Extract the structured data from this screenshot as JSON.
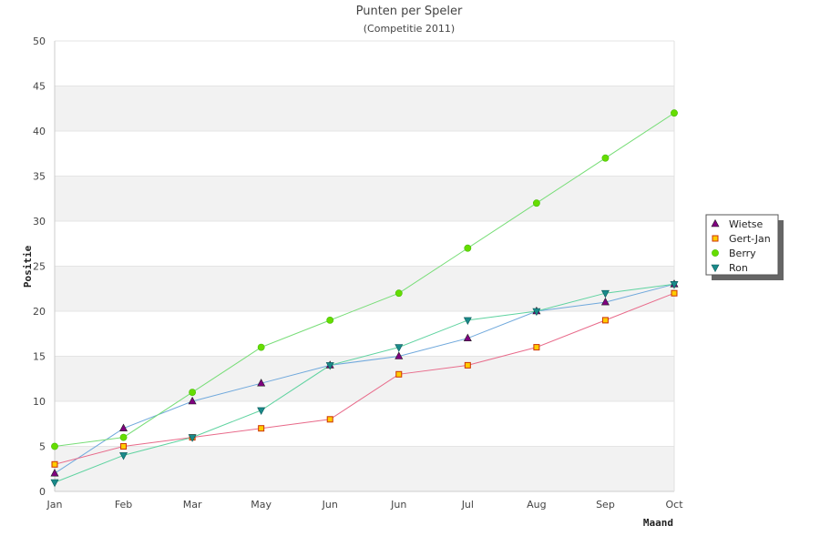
{
  "chart_data": {
    "type": "line",
    "title": "Punten per Speler",
    "subtitle": "(Competitie 2011)",
    "xlabel": "Maand",
    "ylabel": "Positie",
    "categories": [
      "Jan",
      "Feb",
      "Mar",
      "May",
      "Jun",
      "Jun",
      "Jul",
      "Aug",
      "Sep",
      "Oct"
    ],
    "ylim": [
      0,
      50
    ],
    "yticks": [
      0,
      5,
      10,
      15,
      20,
      25,
      30,
      35,
      40,
      45,
      50
    ],
    "grid": "alternating horizontal bands",
    "legend_position": "right",
    "series": [
      {
        "name": "Wietse",
        "color": "#6fa8dc",
        "marker": "triangle-up",
        "marker_fill": "#800080",
        "values": [
          2,
          7,
          10,
          12,
          14,
          15,
          17,
          20,
          21,
          23
        ]
      },
      {
        "name": "Gert-Jan",
        "color": "#e86a8a",
        "marker": "square",
        "marker_fill": "#ffcc00",
        "values": [
          3,
          5,
          6,
          7,
          8,
          13,
          14,
          16,
          19,
          22
        ]
      },
      {
        "name": "Berry",
        "color": "#77dd77",
        "marker": "plus",
        "marker_fill": "#66dd00",
        "values": [
          5,
          6,
          11,
          16,
          19,
          22,
          27,
          32,
          37,
          42
        ]
      },
      {
        "name": "Ron",
        "color": "#5fd3a0",
        "marker": "triangle-down",
        "marker_fill": "#1a8a8a",
        "values": [
          1,
          4,
          6,
          9,
          14,
          16,
          19,
          20,
          22,
          23
        ]
      }
    ]
  }
}
